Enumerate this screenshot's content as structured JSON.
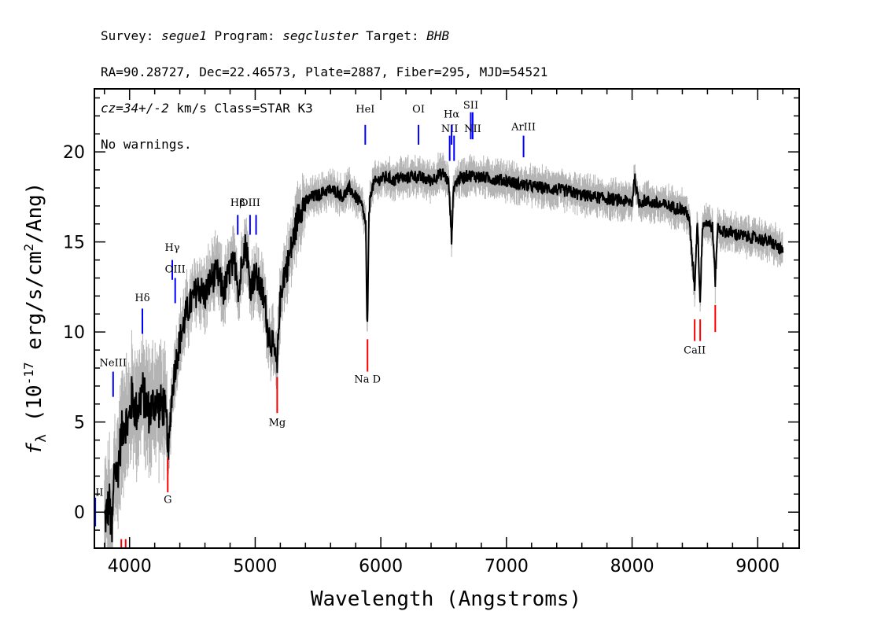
{
  "header": {
    "line1": {
      "survey_label": "Survey: ",
      "survey": "segue1",
      "program_label": " Program: ",
      "program": "segcluster",
      "target_label": " Target: ",
      "target": "BHB"
    },
    "line2": "RA=90.28727, Dec=22.46573, Plate=2887, Fiber=295, MJD=54521",
    "line3": {
      "cz": "cz=34+/-2",
      "rest": " km/s Class=STAR K3"
    },
    "line4": "No warnings."
  },
  "chart_data": {
    "type": "line",
    "title": "",
    "xlabel": "Wavelength (Angstroms)",
    "ylabel_parts": {
      "sym": "f",
      "sub": "λ",
      "a": " (10",
      "exp1": "-17",
      "b": " erg/s/cm",
      "exp2": "2",
      "c": "/Ang)"
    },
    "xlim": [
      3720,
      9330
    ],
    "ylim": [
      -2,
      23.5
    ],
    "x_ticks": [
      4000,
      5000,
      6000,
      7000,
      8000,
      9000
    ],
    "y_ticks": [
      0,
      5,
      10,
      15,
      20
    ],
    "x_minor_step": 200,
    "y_minor_step": 1,
    "colors": {
      "flux": "#000000",
      "error_band": "#b4b4b4",
      "emission": "#0000ff",
      "absorption": "#ff0000"
    },
    "series": [
      {
        "role": "flux",
        "x": [
          3800,
          3840,
          3860,
          3880,
          3900,
          3930,
          3960,
          3990,
          4020,
          4050,
          4080,
          4100,
          4130,
          4160,
          4200,
          4240,
          4270,
          4300,
          4310,
          4330,
          4360,
          4400,
          4450,
          4500,
          4550,
          4600,
          4650,
          4700,
          4750,
          4800,
          4850,
          4870,
          4900,
          4930,
          4960,
          5000,
          5040,
          5080,
          5100,
          5130,
          5160,
          5175,
          5190,
          5220,
          5260,
          5300,
          5350,
          5400,
          5450,
          5500,
          5550,
          5600,
          5650,
          5700,
          5750,
          5800,
          5850,
          5880,
          5890,
          5896,
          5905,
          5920,
          5950,
          6000,
          6050,
          6100,
          6150,
          6200,
          6250,
          6300,
          6350,
          6400,
          6450,
          6500,
          6540,
          6563,
          6580,
          6620,
          6700,
          6800,
          6900,
          7000,
          7100,
          7200,
          7300,
          7400,
          7500,
          7600,
          7700,
          7800,
          7900,
          8000,
          8020,
          8050,
          8100,
          8200,
          8300,
          8400,
          8450,
          8498,
          8520,
          8542,
          8560,
          8600,
          8640,
          8662,
          8680,
          8720,
          8800,
          8900,
          9000,
          9100,
          9150,
          9200
        ],
        "y": [
          -0.5,
          0.5,
          -1.5,
          2.8,
          2.0,
          4.0,
          5.2,
          4.8,
          6.5,
          5.5,
          6.0,
          6.8,
          6.0,
          5.5,
          6.2,
          5.8,
          6.0,
          4.5,
          3.0,
          6.0,
          8.0,
          9.5,
          11.0,
          11.8,
          12.5,
          12.0,
          13.0,
          13.2,
          12.2,
          13.5,
          13.8,
          12.0,
          14.5,
          14.8,
          12.5,
          13.2,
          12.5,
          11.5,
          10.0,
          9.5,
          8.5,
          7.8,
          11.0,
          13.0,
          13.8,
          15.0,
          16.8,
          17.2,
          17.5,
          17.6,
          17.8,
          17.9,
          17.8,
          17.5,
          18.0,
          17.5,
          17.0,
          16.0,
          10.5,
          11.0,
          16.5,
          17.8,
          18.3,
          18.5,
          18.6,
          18.4,
          18.6,
          18.5,
          18.7,
          18.6,
          18.5,
          18.4,
          18.7,
          18.8,
          18.3,
          15.2,
          18.1,
          18.5,
          18.7,
          18.6,
          18.5,
          18.4,
          18.2,
          18.1,
          18.0,
          17.9,
          17.8,
          17.6,
          17.5,
          17.4,
          17.3,
          17.2,
          18.6,
          17.2,
          17.3,
          17.1,
          17.0,
          16.8,
          16.5,
          12.5,
          16.3,
          11.6,
          16.0,
          16.1,
          15.8,
          12.8,
          15.8,
          15.6,
          15.5,
          15.3,
          15.2,
          15.0,
          14.8,
          14.4
        ]
      }
    ],
    "emission_lines": [
      {
        "label": "OII",
        "x": 3727,
        "y0": 0.8,
        "y1": -0.8,
        "ly": 0.9
      },
      {
        "label": "NeIII",
        "x": 3869,
        "y0": 7.8,
        "y1": 6.4,
        "ly": 8.1
      },
      {
        "label": "Hδ",
        "x": 4102,
        "y0": 11.3,
        "y1": 9.9,
        "ly": 11.7
      },
      {
        "label": "Hγ",
        "x": 4340,
        "y0": 14.0,
        "y1": 12.9,
        "ly": 14.5
      },
      {
        "label": "OIII",
        "x": 4363,
        "y0": 13.0,
        "y1": 11.6,
        "ly": 13.3
      },
      {
        "label": "Hβ",
        "x": 4861,
        "y0": 16.5,
        "y1": 15.4,
        "ly": 17.0
      },
      {
        "label": "OIII",
        "x": 4959,
        "y0": 16.5,
        "y1": 15.4,
        "ly": 17.0
      },
      {
        "label": "OIII_b",
        "x": 5007,
        "y0": 16.5,
        "y1": 15.4,
        "ly": null
      },
      {
        "label": "HeI",
        "x": 5876,
        "y0": 21.5,
        "y1": 20.4,
        "ly": 22.2
      },
      {
        "label": "OI",
        "x": 6300,
        "y0": 21.5,
        "y1": 20.4,
        "ly": 22.2
      },
      {
        "label": "NII",
        "x": 6548,
        "y0": 20.9,
        "y1": 19.5,
        "ly": 21.1
      },
      {
        "label": "Hα",
        "x": 6563,
        "y0": 21.5,
        "y1": 20.4,
        "ly": 21.9
      },
      {
        "label": "NII_b",
        "x": 6583,
        "y0": 20.9,
        "y1": 19.5,
        "ly": null
      },
      {
        "label": "SII",
        "x": 6716,
        "y0": 22.2,
        "y1": 20.7,
        "ly": 22.4
      },
      {
        "label": "NII",
        "x": 6731,
        "y0": 22.2,
        "y1": 20.7,
        "ly": 21.1
      },
      {
        "label": "ArIII",
        "x": 7136,
        "y0": 20.9,
        "y1": 19.7,
        "ly": 21.2
      }
    ],
    "absorption_lines": [
      {
        "label": "H",
        "x": 3934,
        "y0": -1.5,
        "y1": -3.0,
        "ly": null
      },
      {
        "label": "K",
        "x": 3969,
        "y0": -1.5,
        "y1": -3.0,
        "ly": null
      },
      {
        "label": "G",
        "x": 4304,
        "y0": 3.0,
        "y1": 1.1,
        "ly": 0.5
      },
      {
        "label": "Mg",
        "x": 5175,
        "y0": 7.5,
        "y1": 5.5,
        "ly": 4.8
      },
      {
        "label": "Na D",
        "x": 5894,
        "y0": 9.6,
        "y1": 7.8,
        "ly": 7.2
      },
      {
        "label": "CaII",
        "x": 8498,
        "y0": 10.7,
        "y1": 9.5,
        "ly": 8.8
      },
      {
        "label": "CaII_b",
        "x": 8542,
        "y0": 10.7,
        "y1": 9.5,
        "ly": null
      },
      {
        "label": "CaII_c",
        "x": 8662,
        "y0": 11.5,
        "y1": 10.0,
        "ly": null
      }
    ]
  }
}
